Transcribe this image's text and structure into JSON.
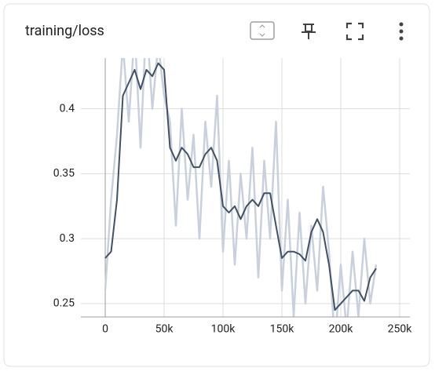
{
  "chart_data": {
    "type": "line",
    "title": "training/loss",
    "x": [
      0,
      5000,
      10000,
      15000,
      20000,
      25000,
      30000,
      35000,
      40000,
      45000,
      50000,
      55000,
      60000,
      65000,
      70000,
      75000,
      80000,
      85000,
      90000,
      95000,
      100000,
      105000,
      110000,
      115000,
      120000,
      125000,
      130000,
      135000,
      140000,
      145000,
      150000,
      155000,
      160000,
      165000,
      170000,
      175000,
      180000,
      185000,
      190000,
      195000,
      200000,
      205000,
      210000,
      215000,
      220000,
      225000,
      230000
    ],
    "series": [
      {
        "name": "raw",
        "color": "#c9d0dd",
        "values": [
          0.26,
          0.33,
          0.38,
          0.45,
          0.39,
          0.46,
          0.37,
          0.47,
          0.4,
          0.45,
          0.41,
          0.39,
          0.31,
          0.4,
          0.33,
          0.38,
          0.3,
          0.39,
          0.34,
          0.41,
          0.29,
          0.36,
          0.28,
          0.35,
          0.3,
          0.37,
          0.27,
          0.36,
          0.3,
          0.39,
          0.26,
          0.33,
          0.24,
          0.32,
          0.25,
          0.31,
          0.26,
          0.34,
          0.29,
          0.22,
          0.28,
          0.23,
          0.29,
          0.24,
          0.3,
          0.25,
          0.28
        ]
      },
      {
        "name": "smoothed",
        "color": "#425066",
        "values": [
          0.285,
          0.29,
          0.33,
          0.41,
          0.42,
          0.43,
          0.415,
          0.43,
          0.425,
          0.435,
          0.43,
          0.37,
          0.36,
          0.37,
          0.365,
          0.355,
          0.355,
          0.365,
          0.37,
          0.36,
          0.325,
          0.32,
          0.325,
          0.315,
          0.325,
          0.33,
          0.325,
          0.335,
          0.335,
          0.31,
          0.285,
          0.29,
          0.29,
          0.288,
          0.283,
          0.305,
          0.315,
          0.305,
          0.28,
          0.245,
          0.25,
          0.255,
          0.26,
          0.26,
          0.252,
          0.27,
          0.277
        ]
      }
    ],
    "xlim": [
      -20700,
      258700
    ],
    "ylim": [
      0.2397,
      0.439
    ],
    "xticks": [
      0,
      {
        "value": 50000,
        "label": "50k"
      },
      {
        "value": 100000,
        "label": "100k"
      },
      {
        "value": 150000,
        "label": "150k"
      },
      {
        "value": 200000,
        "label": "200k"
      },
      {
        "value": 250000,
        "label": "250k"
      }
    ],
    "yticks": [
      0.25,
      0.3,
      0.35,
      0.4
    ],
    "grid": true
  }
}
